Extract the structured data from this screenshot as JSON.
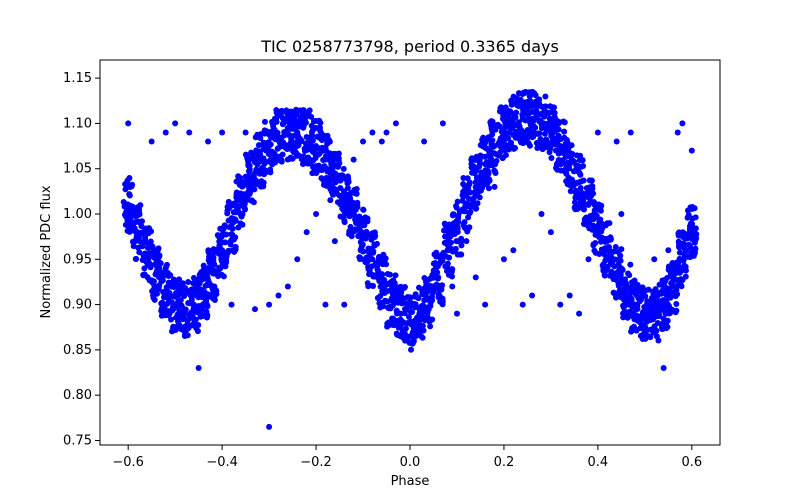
{
  "chart_data": {
    "type": "scatter",
    "title": "TIC 0258773798, period 0.3365 days",
    "xlabel": "Phase",
    "ylabel": "Normalized PDC flux",
    "xlim": [
      -0.66,
      0.66
    ],
    "ylim": [
      0.745,
      1.17
    ],
    "xticks": [
      -0.6,
      -0.4,
      -0.2,
      0.0,
      0.2,
      0.4,
      0.6
    ],
    "xtick_labels": [
      "−0.6",
      "−0.4",
      "−0.2",
      "0.0",
      "0.2",
      "0.4",
      "0.6"
    ],
    "yticks": [
      0.75,
      0.8,
      0.85,
      0.9,
      0.95,
      1.0,
      1.05,
      1.1,
      1.15
    ],
    "ytick_labels": [
      "0.75",
      "0.80",
      "0.85",
      "0.90",
      "0.95",
      "1.00",
      "1.05",
      "1.10",
      "1.15"
    ],
    "grid": false,
    "marker_color": "#0000ff",
    "series": [
      {
        "x": [
          -0.6,
          -0.58,
          -0.56,
          -0.54,
          -0.52,
          -0.5,
          -0.48,
          -0.46,
          -0.44,
          -0.42,
          -0.4,
          -0.38,
          -0.36,
          -0.34,
          -0.32,
          -0.3,
          -0.28,
          -0.26,
          -0.24,
          -0.22,
          -0.2,
          -0.18,
          -0.16,
          -0.14,
          -0.12,
          -0.1,
          -0.08,
          -0.06,
          -0.04,
          -0.02,
          0.0,
          0.02,
          0.04,
          0.06,
          0.08,
          0.1,
          0.12,
          0.14,
          0.16,
          0.18,
          0.2,
          0.22,
          0.24,
          0.26,
          0.28,
          0.3,
          0.32,
          0.34,
          0.36,
          0.38,
          0.4,
          0.42,
          0.44,
          0.46,
          0.48,
          0.5,
          0.52,
          0.54,
          0.56,
          0.58,
          0.6
        ],
        "y": [
          1.01,
          0.98,
          0.955,
          0.935,
          0.915,
          0.9,
          0.895,
          0.9,
          0.915,
          0.935,
          0.96,
          0.985,
          1.015,
          1.04,
          1.06,
          1.075,
          1.085,
          1.09,
          1.09,
          1.085,
          1.075,
          1.06,
          1.04,
          1.02,
          1.0,
          0.975,
          0.95,
          0.925,
          0.905,
          0.89,
          0.88,
          0.89,
          0.905,
          0.93,
          0.96,
          0.985,
          1.01,
          1.035,
          1.055,
          1.075,
          1.09,
          1.1,
          1.105,
          1.105,
          1.1,
          1.09,
          1.075,
          1.055,
          1.035,
          1.01,
          0.985,
          0.96,
          0.935,
          0.915,
          0.9,
          0.89,
          0.89,
          0.9,
          0.92,
          0.95,
          0.98
        ],
        "scatter_band": 0.03
      },
      {
        "x": [
          -0.6,
          -0.55,
          -0.52,
          -0.5,
          -0.47,
          -0.45,
          -0.43,
          -0.4,
          -0.38,
          -0.35,
          -0.33,
          -0.3,
          -0.3,
          -0.28,
          -0.26,
          -0.24,
          -0.22,
          -0.2,
          -0.18,
          -0.16,
          -0.14,
          -0.12,
          -0.1,
          -0.08,
          -0.06,
          -0.05,
          -0.03,
          0.03,
          0.05,
          0.07,
          0.09,
          0.1,
          0.12,
          0.14,
          0.16,
          0.18,
          0.2,
          0.22,
          0.24,
          0.26,
          0.28,
          0.3,
          0.32,
          0.34,
          0.36,
          0.38,
          0.4,
          0.42,
          0.44,
          0.45,
          0.47,
          0.5,
          0.52,
          0.54,
          0.55,
          0.57,
          0.58,
          0.6
        ],
        "y": [
          1.1,
          1.08,
          1.09,
          1.1,
          1.09,
          0.83,
          1.08,
          1.09,
          0.9,
          1.09,
          0.895,
          0.765,
          0.9,
          0.91,
          0.92,
          0.95,
          0.98,
          1.0,
          0.9,
          0.97,
          0.9,
          1.06,
          1.08,
          1.09,
          1.08,
          1.09,
          1.1,
          1.08,
          0.93,
          1.1,
          0.92,
          0.89,
          0.97,
          0.93,
          0.9,
          1.03,
          0.95,
          0.96,
          0.9,
          0.91,
          1.0,
          0.98,
          0.9,
          0.91,
          0.89,
          0.95,
          1.09,
          0.97,
          1.08,
          1.0,
          1.09,
          0.87,
          0.95,
          0.83,
          0.96,
          1.09,
          1.1,
          1.07
        ],
        "scatter_band": 0.0
      }
    ]
  }
}
